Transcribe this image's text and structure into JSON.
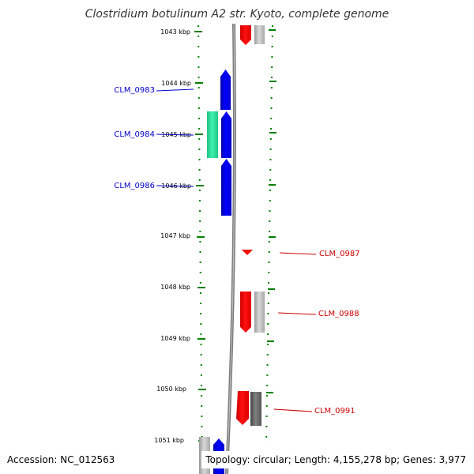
{
  "title": "Clostridium botulinum A2 str. Kyoto, complete genome",
  "footer": {
    "accession": "Accession: NC_012563",
    "topology": "Topology: circular; Length: 4,155,278 bp; Genes: 3,977"
  },
  "ticks": [
    "1043 kbp",
    "1044 kbp",
    "1045 kbp",
    "1046 kbp",
    "1047 kbp",
    "1048 kbp",
    "1049 kbp",
    "1050 kbp",
    "1051 kbp"
  ],
  "gene_labels_left": [
    "CLM_0983",
    "CLM_0984",
    "CLM_0986"
  ],
  "gene_labels_right": [
    "CLM_0987",
    "CLM_0988",
    "CLM_0991"
  ],
  "colors": {
    "forward_gene": "#0000ff",
    "reverse_gene": "#ff0000",
    "other_gene": "#33e8a0",
    "gray_gene": "#b8b8b8",
    "dark_gray_gene": "#666666",
    "tick_green": "#008000",
    "backbone": "#888888"
  }
}
